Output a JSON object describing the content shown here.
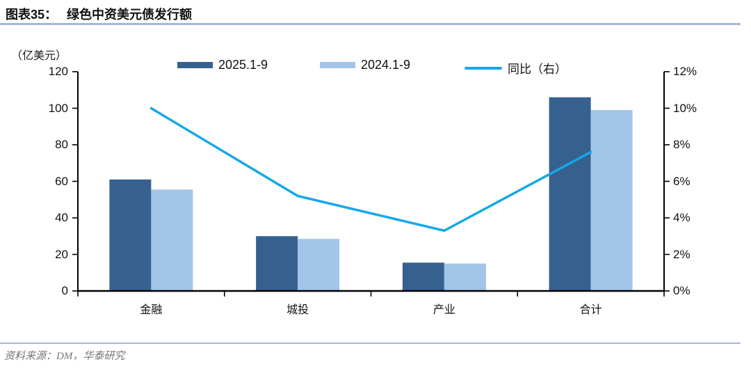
{
  "header": {
    "label": "图表35：",
    "title": "绿色中资美元债发行额"
  },
  "chart_data": {
    "type": "bar",
    "subtype": "grouped-bars-with-line",
    "title": "绿色中资美元债发行额",
    "unit_label": "（亿美元）",
    "categories": [
      "金融",
      "城投",
      "产业",
      "合计"
    ],
    "series": [
      {
        "name": "2025.1-9",
        "type": "bar",
        "axis": "left",
        "color": "#36618F",
        "values": [
          61,
          30,
          15.5,
          106
        ]
      },
      {
        "name": "2024.1-9",
        "type": "bar",
        "axis": "left",
        "color": "#A2C5E8",
        "values": [
          55.5,
          28.5,
          15,
          99
        ]
      },
      {
        "name": "同比（右）",
        "type": "line",
        "axis": "right",
        "color": "#16A8EA",
        "values_pct": [
          10.0,
          5.2,
          3.3,
          7.6
        ]
      }
    ],
    "left_axis": {
      "ticks": [
        0,
        20,
        40,
        60,
        80,
        100,
        120
      ],
      "min": 0,
      "max": 120
    },
    "right_axis": {
      "tick_labels": [
        "0%",
        "2%",
        "4%",
        "6%",
        "8%",
        "10%",
        "12%"
      ],
      "tick_values": [
        0,
        2,
        4,
        6,
        8,
        10,
        12
      ],
      "min": 0,
      "max": 12
    },
    "legend_position": "top",
    "grid": false
  },
  "footer": {
    "source": "资料来源：DM，华泰研究"
  }
}
